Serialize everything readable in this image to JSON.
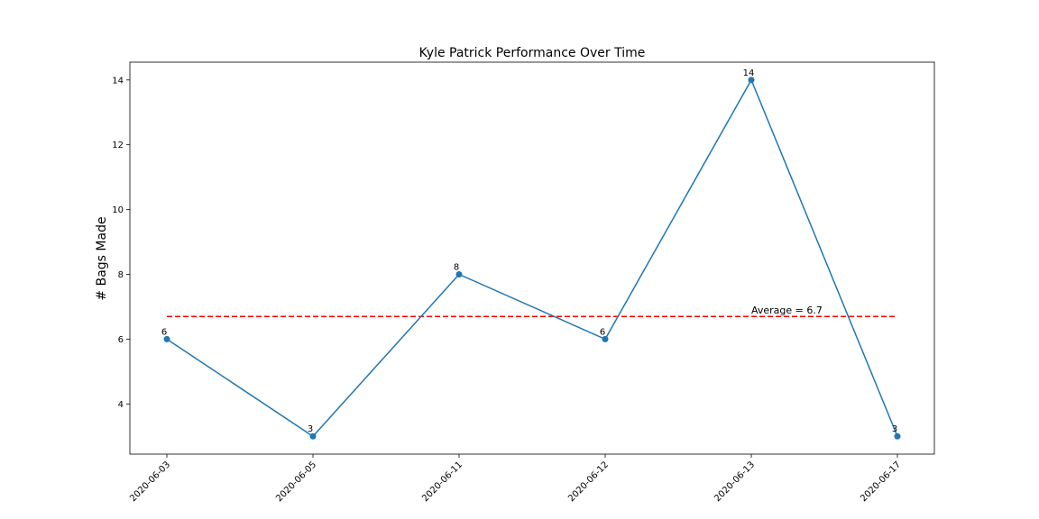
{
  "chart_data": {
    "type": "line",
    "title": "Kyle Patrick Performance Over Time",
    "xlabel": "",
    "ylabel": "# Bags Made",
    "categories": [
      "2020-06-03",
      "2020-06-05",
      "2020-06-11",
      "2020-06-12",
      "2020-06-13",
      "2020-06-17"
    ],
    "series": [
      {
        "values": [
          6,
          3,
          8,
          6,
          14,
          3
        ],
        "color": "#1f77b4",
        "marker": "circle"
      }
    ],
    "data_labels": [
      "6",
      "3",
      "8",
      "6",
      "14",
      "3"
    ],
    "average": {
      "value": 6.7,
      "label": "Average = 6.7",
      "color": "#ff0000",
      "style": "dashed"
    },
    "ylim": [
      2.45,
      14.55
    ],
    "yticks": [
      4,
      6,
      8,
      10,
      12,
      14
    ],
    "grid": false,
    "legend": "none"
  }
}
